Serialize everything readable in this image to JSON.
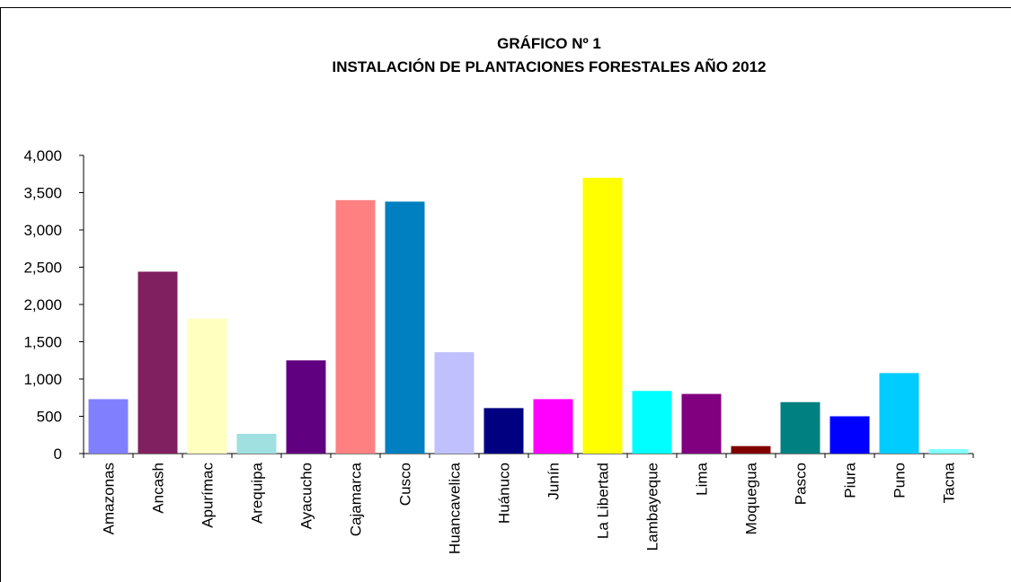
{
  "chart_data": {
    "type": "bar",
    "title": [
      "GRÁFICO Nº 1",
      "INSTALACIÓN DE PLANTACIONES FORESTALES AÑO 2012"
    ],
    "categories": [
      "Amazonas",
      "Ancash",
      "Apurímac",
      "Arequipa",
      "Ayacucho",
      "Cajamarca",
      "Cusco",
      "Huancavelica",
      "Huánuco",
      "Junín",
      "La Libertad",
      "Lambayeque",
      "Lima",
      "Moquegua",
      "Pasco",
      "Piura",
      "Puno",
      "Tacna"
    ],
    "values": [
      730,
      2440,
      1810,
      265,
      1250,
      3400,
      3380,
      1360,
      610,
      730,
      3700,
      840,
      800,
      100,
      690,
      500,
      1080,
      60
    ],
    "colors": [
      "#8080ff",
      "#802060",
      "#ffffc0",
      "#a0e0e0",
      "#600080",
      "#ff8080",
      "#0080c0",
      "#c0c0ff",
      "#000080",
      "#ff00ff",
      "#ffff00",
      "#00ffff",
      "#800080",
      "#800000",
      "#008080",
      "#0000ff",
      "#00ccff",
      "#80ffff"
    ],
    "ylim": [
      0,
      4000
    ],
    "yticks": [
      0,
      500,
      {
        "value": 1000,
        "label": "1,000"
      },
      {
        "value": 1500,
        "label": "1,500"
      },
      {
        "value": 2000,
        "label": "2,000"
      },
      {
        "value": 2500,
        "label": "2,500"
      },
      {
        "value": 3000,
        "label": "3,000"
      },
      {
        "value": 3500,
        "label": "3,500"
      },
      {
        "value": 4000,
        "label": "4,000"
      }
    ],
    "grid": false
  }
}
